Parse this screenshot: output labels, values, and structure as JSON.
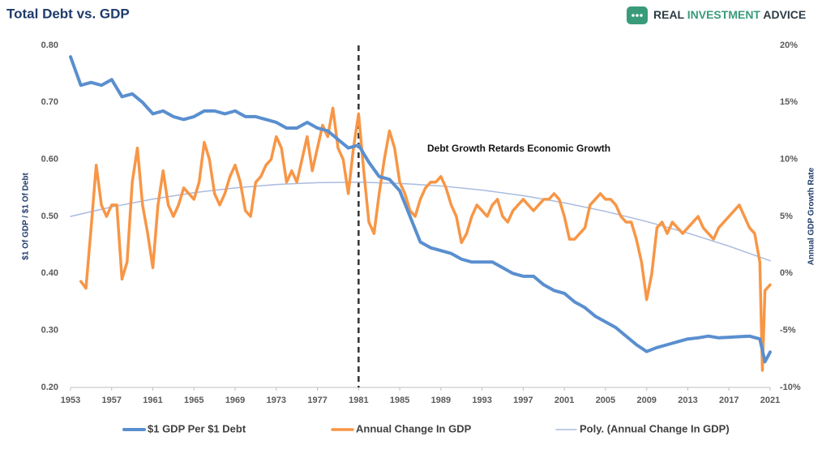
{
  "chart_data": {
    "type": "line",
    "title": "Total Debt vs. GDP",
    "logo": [
      "REAL",
      "INVESTMENT",
      "ADVICE"
    ],
    "ylabel": "$1 Of GDP / $1 Of Debt",
    "y2label": "Annual GDP Growth Rate",
    "annotation": "Debt Growth Retards Economic Growth",
    "vline": 1981,
    "xlim": [
      1953,
      2021
    ],
    "xticks": [
      1953,
      1957,
      1961,
      1965,
      1969,
      1973,
      1977,
      1981,
      1985,
      1989,
      1993,
      1997,
      2001,
      2005,
      2009,
      2013,
      2017,
      2021
    ],
    "ylim": [
      0.2,
      0.8
    ],
    "yticks": [
      {
        "value": 0.2,
        "label": "0.20"
      },
      {
        "value": 0.3,
        "label": "0.30"
      },
      {
        "value": 0.4,
        "label": "0.40"
      },
      {
        "value": 0.5,
        "label": "0.50"
      },
      {
        "value": 0.6,
        "label": "0.60"
      },
      {
        "value": 0.7,
        "label": "0.70"
      },
      {
        "value": 0.8,
        "label": "0.80"
      }
    ],
    "y2lim": [
      -10,
      20
    ],
    "y2ticks": [
      {
        "value": -10,
        "label": "-10%"
      },
      {
        "value": -5,
        "label": "-5%"
      },
      {
        "value": 0,
        "label": "0%"
      },
      {
        "value": 5,
        "label": "5%"
      },
      {
        "value": 10,
        "label": "10%"
      },
      {
        "value": 15,
        "label": "15%"
      },
      {
        "value": 20,
        "label": "20%"
      }
    ],
    "grid": false,
    "series": [
      {
        "name": "$1 GDP Per $1 Debt",
        "color": "#5a8fcf",
        "width": 4,
        "x": [
          1953,
          1954,
          1955,
          1956,
          1957,
          1958,
          1959,
          1960,
          1961,
          1962,
          1963,
          1964,
          1965,
          1966,
          1967,
          1968,
          1969,
          1970,
          1971,
          1972,
          1973,
          1974,
          1975,
          1976,
          1977,
          1978,
          1979,
          1980,
          1981,
          1982,
          1983,
          1984,
          1985,
          1986,
          1987,
          1988,
          1989,
          1990,
          1991,
          1992,
          1993,
          1994,
          1995,
          1996,
          1997,
          1998,
          1999,
          2000,
          2001,
          2002,
          2003,
          2004,
          2005,
          2006,
          2007,
          2008,
          2009,
          2010,
          2011,
          2012,
          2013,
          2014,
          2015,
          2016,
          2017,
          2018,
          2019,
          2020,
          2020.5,
          2021
        ],
        "values": [
          0.78,
          0.73,
          0.735,
          0.73,
          0.74,
          0.71,
          0.715,
          0.7,
          0.68,
          0.685,
          0.675,
          0.67,
          0.675,
          0.685,
          0.685,
          0.68,
          0.685,
          0.675,
          0.675,
          0.67,
          0.665,
          0.655,
          0.655,
          0.665,
          0.655,
          0.65,
          0.635,
          0.62,
          0.625,
          0.595,
          0.57,
          0.565,
          0.545,
          0.5,
          0.455,
          0.445,
          0.44,
          0.435,
          0.425,
          0.42,
          0.42,
          0.42,
          0.41,
          0.4,
          0.395,
          0.395,
          0.38,
          0.37,
          0.365,
          0.35,
          0.34,
          0.325,
          0.315,
          0.305,
          0.29,
          0.275,
          0.263,
          0.27,
          0.275,
          0.28,
          0.285,
          0.287,
          0.29,
          0.287,
          0.288,
          0.289,
          0.29,
          0.285,
          0.245,
          0.262
        ]
      },
      {
        "name": "Annual Change In GDP",
        "color": "#f79646",
        "width": 3.5,
        "axis": "y2",
        "x": [
          1954,
          1954.5,
          1955,
          1955.5,
          1956,
          1956.5,
          1957,
          1957.5,
          1958,
          1958.5,
          1959,
          1959.5,
          1960,
          1960.5,
          1961,
          1961.5,
          1962,
          1962.5,
          1963,
          1963.5,
          1964,
          1964.5,
          1965,
          1965.5,
          1966,
          1966.5,
          1967,
          1967.5,
          1968,
          1968.5,
          1969,
          1969.5,
          1970,
          1970.5,
          1971,
          1971.5,
          1972,
          1972.5,
          1973,
          1973.5,
          1974,
          1974.5,
          1975,
          1975.5,
          1976,
          1976.5,
          1977,
          1977.5,
          1978,
          1978.5,
          1979,
          1979.5,
          1980,
          1980.5,
          1981,
          1981.5,
          1982,
          1982.5,
          1983,
          1983.5,
          1984,
          1984.5,
          1985,
          1985.5,
          1986,
          1986.5,
          1987,
          1987.5,
          1988,
          1988.5,
          1989,
          1989.5,
          1990,
          1990.5,
          1991,
          1991.5,
          1992,
          1992.5,
          1993,
          1993.5,
          1994,
          1994.5,
          1995,
          1995.5,
          1996,
          1996.5,
          1997,
          1997.5,
          1998,
          1998.5,
          1999,
          1999.5,
          2000,
          2000.5,
          2001,
          2001.5,
          2002,
          2002.5,
          2003,
          2003.5,
          2004,
          2004.5,
          2005,
          2005.5,
          2006,
          2006.5,
          2007,
          2007.5,
          2008,
          2008.5,
          2009,
          2009.5,
          2010,
          2010.5,
          2011,
          2011.5,
          2012,
          2012.5,
          2013,
          2013.5,
          2014,
          2014.5,
          2015,
          2015.5,
          2016,
          2016.5,
          2017,
          2017.5,
          2018,
          2018.5,
          2019,
          2019.5,
          2020,
          2020.25,
          2020.5,
          2021
        ],
        "values": [
          -0.7,
          -1.3,
          4,
          9.5,
          6,
          5,
          6,
          6,
          -0.5,
          1,
          8,
          11,
          6,
          3.5,
          0.5,
          6,
          9,
          6,
          5,
          6,
          7.5,
          7,
          6.5,
          8,
          11.5,
          10,
          7,
          6,
          7,
          8.5,
          9.5,
          8,
          5.5,
          5,
          8,
          8.5,
          9.5,
          10,
          12,
          11,
          8,
          9,
          8,
          10,
          12,
          9,
          11,
          13,
          12,
          14.5,
          11,
          10,
          7,
          11,
          14,
          9,
          4.5,
          3.5,
          7,
          10,
          12.5,
          11,
          8,
          7,
          5.5,
          5,
          6.5,
          7.5,
          8,
          8,
          8.5,
          7.5,
          6,
          5,
          2.7,
          3.5,
          5,
          6,
          5.5,
          5,
          6,
          6.5,
          5,
          4.5,
          5.5,
          6,
          6.5,
          6,
          5.5,
          6,
          6.5,
          6.5,
          7,
          6.5,
          5,
          3,
          3,
          3.5,
          4,
          6,
          6.5,
          7,
          6.5,
          6.5,
          6,
          5,
          4.5,
          4.5,
          3,
          1,
          -2.3,
          0,
          4,
          4.5,
          3.5,
          4.5,
          4,
          3.5,
          4,
          4.5,
          5,
          4,
          3.5,
          3,
          4,
          4.5,
          5,
          5.5,
          6,
          5,
          4,
          3.5,
          1,
          -8.5,
          -1.5,
          -1
        ]
      },
      {
        "name": "Poly. (Annual Change In GDP)",
        "color": "#a9bbdf",
        "width": 1.5,
        "axis": "y2",
        "x": [
          1953,
          1957,
          1961,
          1965,
          1969,
          1973,
          1977,
          1981,
          1985,
          1989,
          1993,
          1997,
          2001,
          2005,
          2009,
          2013,
          2017,
          2021
        ],
        "values": [
          5.0,
          5.83,
          6.52,
          7.08,
          7.5,
          7.8,
          7.96,
          8.0,
          7.9,
          7.67,
          7.31,
          6.82,
          6.19,
          5.44,
          4.55,
          3.54,
          2.39,
          1.11
        ]
      }
    ]
  }
}
